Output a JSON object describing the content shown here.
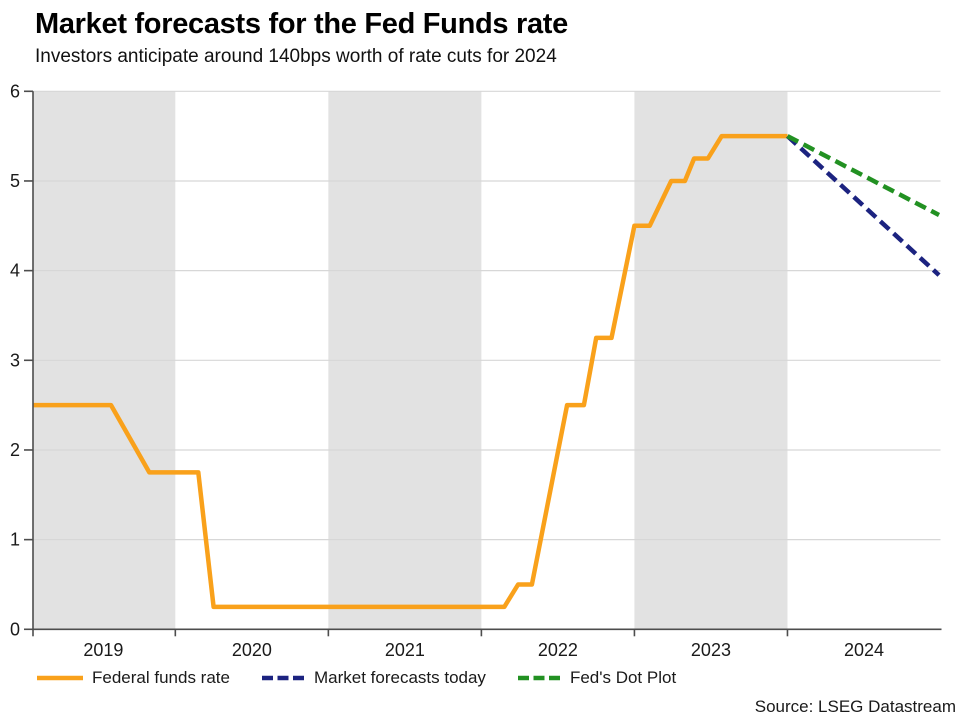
{
  "chart_data": {
    "type": "line",
    "title": "Market forecasts for the Fed Funds rate",
    "subtitle": "Investors anticipate around 140bps worth of rate cuts for 2024",
    "source": "Source: LSEG Datastream",
    "x_domain": [
      2019.07,
      2025.0
    ],
    "y_domain": [
      0,
      6
    ],
    "y_ticks": [
      {
        "value": 0,
        "label": "0"
      },
      {
        "value": 1,
        "label": "1"
      },
      {
        "value": 2,
        "label": "2"
      },
      {
        "value": 3,
        "label": "3"
      },
      {
        "value": 4,
        "label": "4"
      },
      {
        "value": 5,
        "label": "5"
      },
      {
        "value": 6,
        "label": "6"
      }
    ],
    "x_ticks": [
      2019.07,
      2020,
      2021,
      2022,
      2023,
      2024
    ],
    "x_labels": [
      {
        "label": "2019",
        "year": 2019.53
      },
      {
        "label": "2020",
        "year": 2020.5
      },
      {
        "label": "2021",
        "year": 2021.5
      },
      {
        "label": "2022",
        "year": 2022.5
      },
      {
        "label": "2023",
        "year": 2023.5
      },
      {
        "label": "2024",
        "year": 2024.5
      }
    ],
    "shaded_bands": [
      {
        "from": 2019.07,
        "to": 2020.0
      },
      {
        "from": 2021.0,
        "to": 2022.0
      },
      {
        "from": 2023.0,
        "to": 2024.0
      }
    ],
    "grid": true,
    "legend_position": "bottom",
    "colors": {
      "band": "#e2e2e2",
      "grid": "#d7d7d7",
      "axis": "#4d4d4d",
      "text": "#1a1a1a"
    },
    "series": [
      {
        "name": "Federal funds rate",
        "color": "#f9a11b",
        "style": "solid",
        "points": [
          [
            2019.07,
            2.5
          ],
          [
            2019.58,
            2.5
          ],
          [
            2019.83,
            1.75
          ],
          [
            2020.15,
            1.75
          ],
          [
            2020.25,
            0.25
          ],
          [
            2022.15,
            0.25
          ],
          [
            2022.24,
            0.5
          ],
          [
            2022.33,
            0.5
          ],
          [
            2022.56,
            2.5
          ],
          [
            2022.67,
            2.5
          ],
          [
            2022.75,
            3.25
          ],
          [
            2022.85,
            3.25
          ],
          [
            2023.0,
            4.5
          ],
          [
            2023.1,
            4.5
          ],
          [
            2023.24,
            5.0
          ],
          [
            2023.33,
            5.0
          ],
          [
            2023.39,
            5.25
          ],
          [
            2023.48,
            5.25
          ],
          [
            2023.57,
            5.5
          ],
          [
            2024.0,
            5.5
          ]
        ]
      },
      {
        "name": "Market forecasts today",
        "color": "#1c2380",
        "style": "dashed",
        "points": [
          [
            2024.0,
            5.5
          ],
          [
            2024.99,
            3.95
          ]
        ]
      },
      {
        "name": "Fed's Dot Plot",
        "color": "#229122",
        "style": "dashed",
        "points": [
          [
            2024.0,
            5.5
          ],
          [
            2024.99,
            4.62
          ]
        ]
      }
    ]
  }
}
